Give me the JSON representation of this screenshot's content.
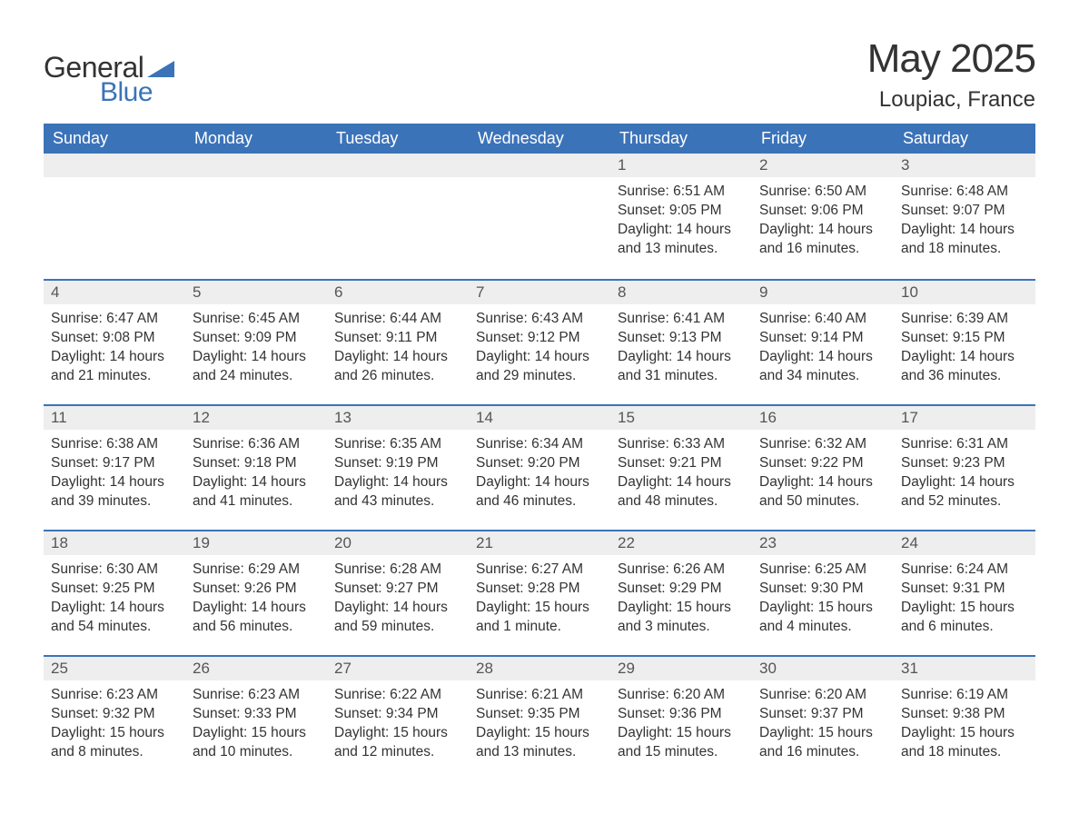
{
  "logo": {
    "text_general": "General",
    "text_blue": "Blue",
    "triangle_color": "#3b73b9"
  },
  "title": "May 2025",
  "subtitle": "Loupiac, France",
  "colors": {
    "header_bg": "#3b73b9",
    "header_text": "#ffffff",
    "row_border": "#3b73b9",
    "daynum_bg": "#eeeeee",
    "body_text": "#333333",
    "page_bg": "#ffffff"
  },
  "typography": {
    "title_fontsize": 44,
    "subtitle_fontsize": 24,
    "header_fontsize": 18,
    "body_fontsize": 15.5,
    "font_family": "Arial"
  },
  "layout": {
    "columns": 7,
    "rows": 5,
    "cell_min_height": 138
  },
  "weekdays": [
    "Sunday",
    "Monday",
    "Tuesday",
    "Wednesday",
    "Thursday",
    "Friday",
    "Saturday"
  ],
  "weeks": [
    [
      {
        "empty": true
      },
      {
        "empty": true
      },
      {
        "empty": true
      },
      {
        "empty": true
      },
      {
        "day": "1",
        "sunrise": "Sunrise: 6:51 AM",
        "sunset": "Sunset: 9:05 PM",
        "daylight": "Daylight: 14 hours and 13 minutes."
      },
      {
        "day": "2",
        "sunrise": "Sunrise: 6:50 AM",
        "sunset": "Sunset: 9:06 PM",
        "daylight": "Daylight: 14 hours and 16 minutes."
      },
      {
        "day": "3",
        "sunrise": "Sunrise: 6:48 AM",
        "sunset": "Sunset: 9:07 PM",
        "daylight": "Daylight: 14 hours and 18 minutes."
      }
    ],
    [
      {
        "day": "4",
        "sunrise": "Sunrise: 6:47 AM",
        "sunset": "Sunset: 9:08 PM",
        "daylight": "Daylight: 14 hours and 21 minutes."
      },
      {
        "day": "5",
        "sunrise": "Sunrise: 6:45 AM",
        "sunset": "Sunset: 9:09 PM",
        "daylight": "Daylight: 14 hours and 24 minutes."
      },
      {
        "day": "6",
        "sunrise": "Sunrise: 6:44 AM",
        "sunset": "Sunset: 9:11 PM",
        "daylight": "Daylight: 14 hours and 26 minutes."
      },
      {
        "day": "7",
        "sunrise": "Sunrise: 6:43 AM",
        "sunset": "Sunset: 9:12 PM",
        "daylight": "Daylight: 14 hours and 29 minutes."
      },
      {
        "day": "8",
        "sunrise": "Sunrise: 6:41 AM",
        "sunset": "Sunset: 9:13 PM",
        "daylight": "Daylight: 14 hours and 31 minutes."
      },
      {
        "day": "9",
        "sunrise": "Sunrise: 6:40 AM",
        "sunset": "Sunset: 9:14 PM",
        "daylight": "Daylight: 14 hours and 34 minutes."
      },
      {
        "day": "10",
        "sunrise": "Sunrise: 6:39 AM",
        "sunset": "Sunset: 9:15 PM",
        "daylight": "Daylight: 14 hours and 36 minutes."
      }
    ],
    [
      {
        "day": "11",
        "sunrise": "Sunrise: 6:38 AM",
        "sunset": "Sunset: 9:17 PM",
        "daylight": "Daylight: 14 hours and 39 minutes."
      },
      {
        "day": "12",
        "sunrise": "Sunrise: 6:36 AM",
        "sunset": "Sunset: 9:18 PM",
        "daylight": "Daylight: 14 hours and 41 minutes."
      },
      {
        "day": "13",
        "sunrise": "Sunrise: 6:35 AM",
        "sunset": "Sunset: 9:19 PM",
        "daylight": "Daylight: 14 hours and 43 minutes."
      },
      {
        "day": "14",
        "sunrise": "Sunrise: 6:34 AM",
        "sunset": "Sunset: 9:20 PM",
        "daylight": "Daylight: 14 hours and 46 minutes."
      },
      {
        "day": "15",
        "sunrise": "Sunrise: 6:33 AM",
        "sunset": "Sunset: 9:21 PM",
        "daylight": "Daylight: 14 hours and 48 minutes."
      },
      {
        "day": "16",
        "sunrise": "Sunrise: 6:32 AM",
        "sunset": "Sunset: 9:22 PM",
        "daylight": "Daylight: 14 hours and 50 minutes."
      },
      {
        "day": "17",
        "sunrise": "Sunrise: 6:31 AM",
        "sunset": "Sunset: 9:23 PM",
        "daylight": "Daylight: 14 hours and 52 minutes."
      }
    ],
    [
      {
        "day": "18",
        "sunrise": "Sunrise: 6:30 AM",
        "sunset": "Sunset: 9:25 PM",
        "daylight": "Daylight: 14 hours and 54 minutes."
      },
      {
        "day": "19",
        "sunrise": "Sunrise: 6:29 AM",
        "sunset": "Sunset: 9:26 PM",
        "daylight": "Daylight: 14 hours and 56 minutes."
      },
      {
        "day": "20",
        "sunrise": "Sunrise: 6:28 AM",
        "sunset": "Sunset: 9:27 PM",
        "daylight": "Daylight: 14 hours and 59 minutes."
      },
      {
        "day": "21",
        "sunrise": "Sunrise: 6:27 AM",
        "sunset": "Sunset: 9:28 PM",
        "daylight": "Daylight: 15 hours and 1 minute."
      },
      {
        "day": "22",
        "sunrise": "Sunrise: 6:26 AM",
        "sunset": "Sunset: 9:29 PM",
        "daylight": "Daylight: 15 hours and 3 minutes."
      },
      {
        "day": "23",
        "sunrise": "Sunrise: 6:25 AM",
        "sunset": "Sunset: 9:30 PM",
        "daylight": "Daylight: 15 hours and 4 minutes."
      },
      {
        "day": "24",
        "sunrise": "Sunrise: 6:24 AM",
        "sunset": "Sunset: 9:31 PM",
        "daylight": "Daylight: 15 hours and 6 minutes."
      }
    ],
    [
      {
        "day": "25",
        "sunrise": "Sunrise: 6:23 AM",
        "sunset": "Sunset: 9:32 PM",
        "daylight": "Daylight: 15 hours and 8 minutes."
      },
      {
        "day": "26",
        "sunrise": "Sunrise: 6:23 AM",
        "sunset": "Sunset: 9:33 PM",
        "daylight": "Daylight: 15 hours and 10 minutes."
      },
      {
        "day": "27",
        "sunrise": "Sunrise: 6:22 AM",
        "sunset": "Sunset: 9:34 PM",
        "daylight": "Daylight: 15 hours and 12 minutes."
      },
      {
        "day": "28",
        "sunrise": "Sunrise: 6:21 AM",
        "sunset": "Sunset: 9:35 PM",
        "daylight": "Daylight: 15 hours and 13 minutes."
      },
      {
        "day": "29",
        "sunrise": "Sunrise: 6:20 AM",
        "sunset": "Sunset: 9:36 PM",
        "daylight": "Daylight: 15 hours and 15 minutes."
      },
      {
        "day": "30",
        "sunrise": "Sunrise: 6:20 AM",
        "sunset": "Sunset: 9:37 PM",
        "daylight": "Daylight: 15 hours and 16 minutes."
      },
      {
        "day": "31",
        "sunrise": "Sunrise: 6:19 AM",
        "sunset": "Sunset: 9:38 PM",
        "daylight": "Daylight: 15 hours and 18 minutes."
      }
    ]
  ]
}
